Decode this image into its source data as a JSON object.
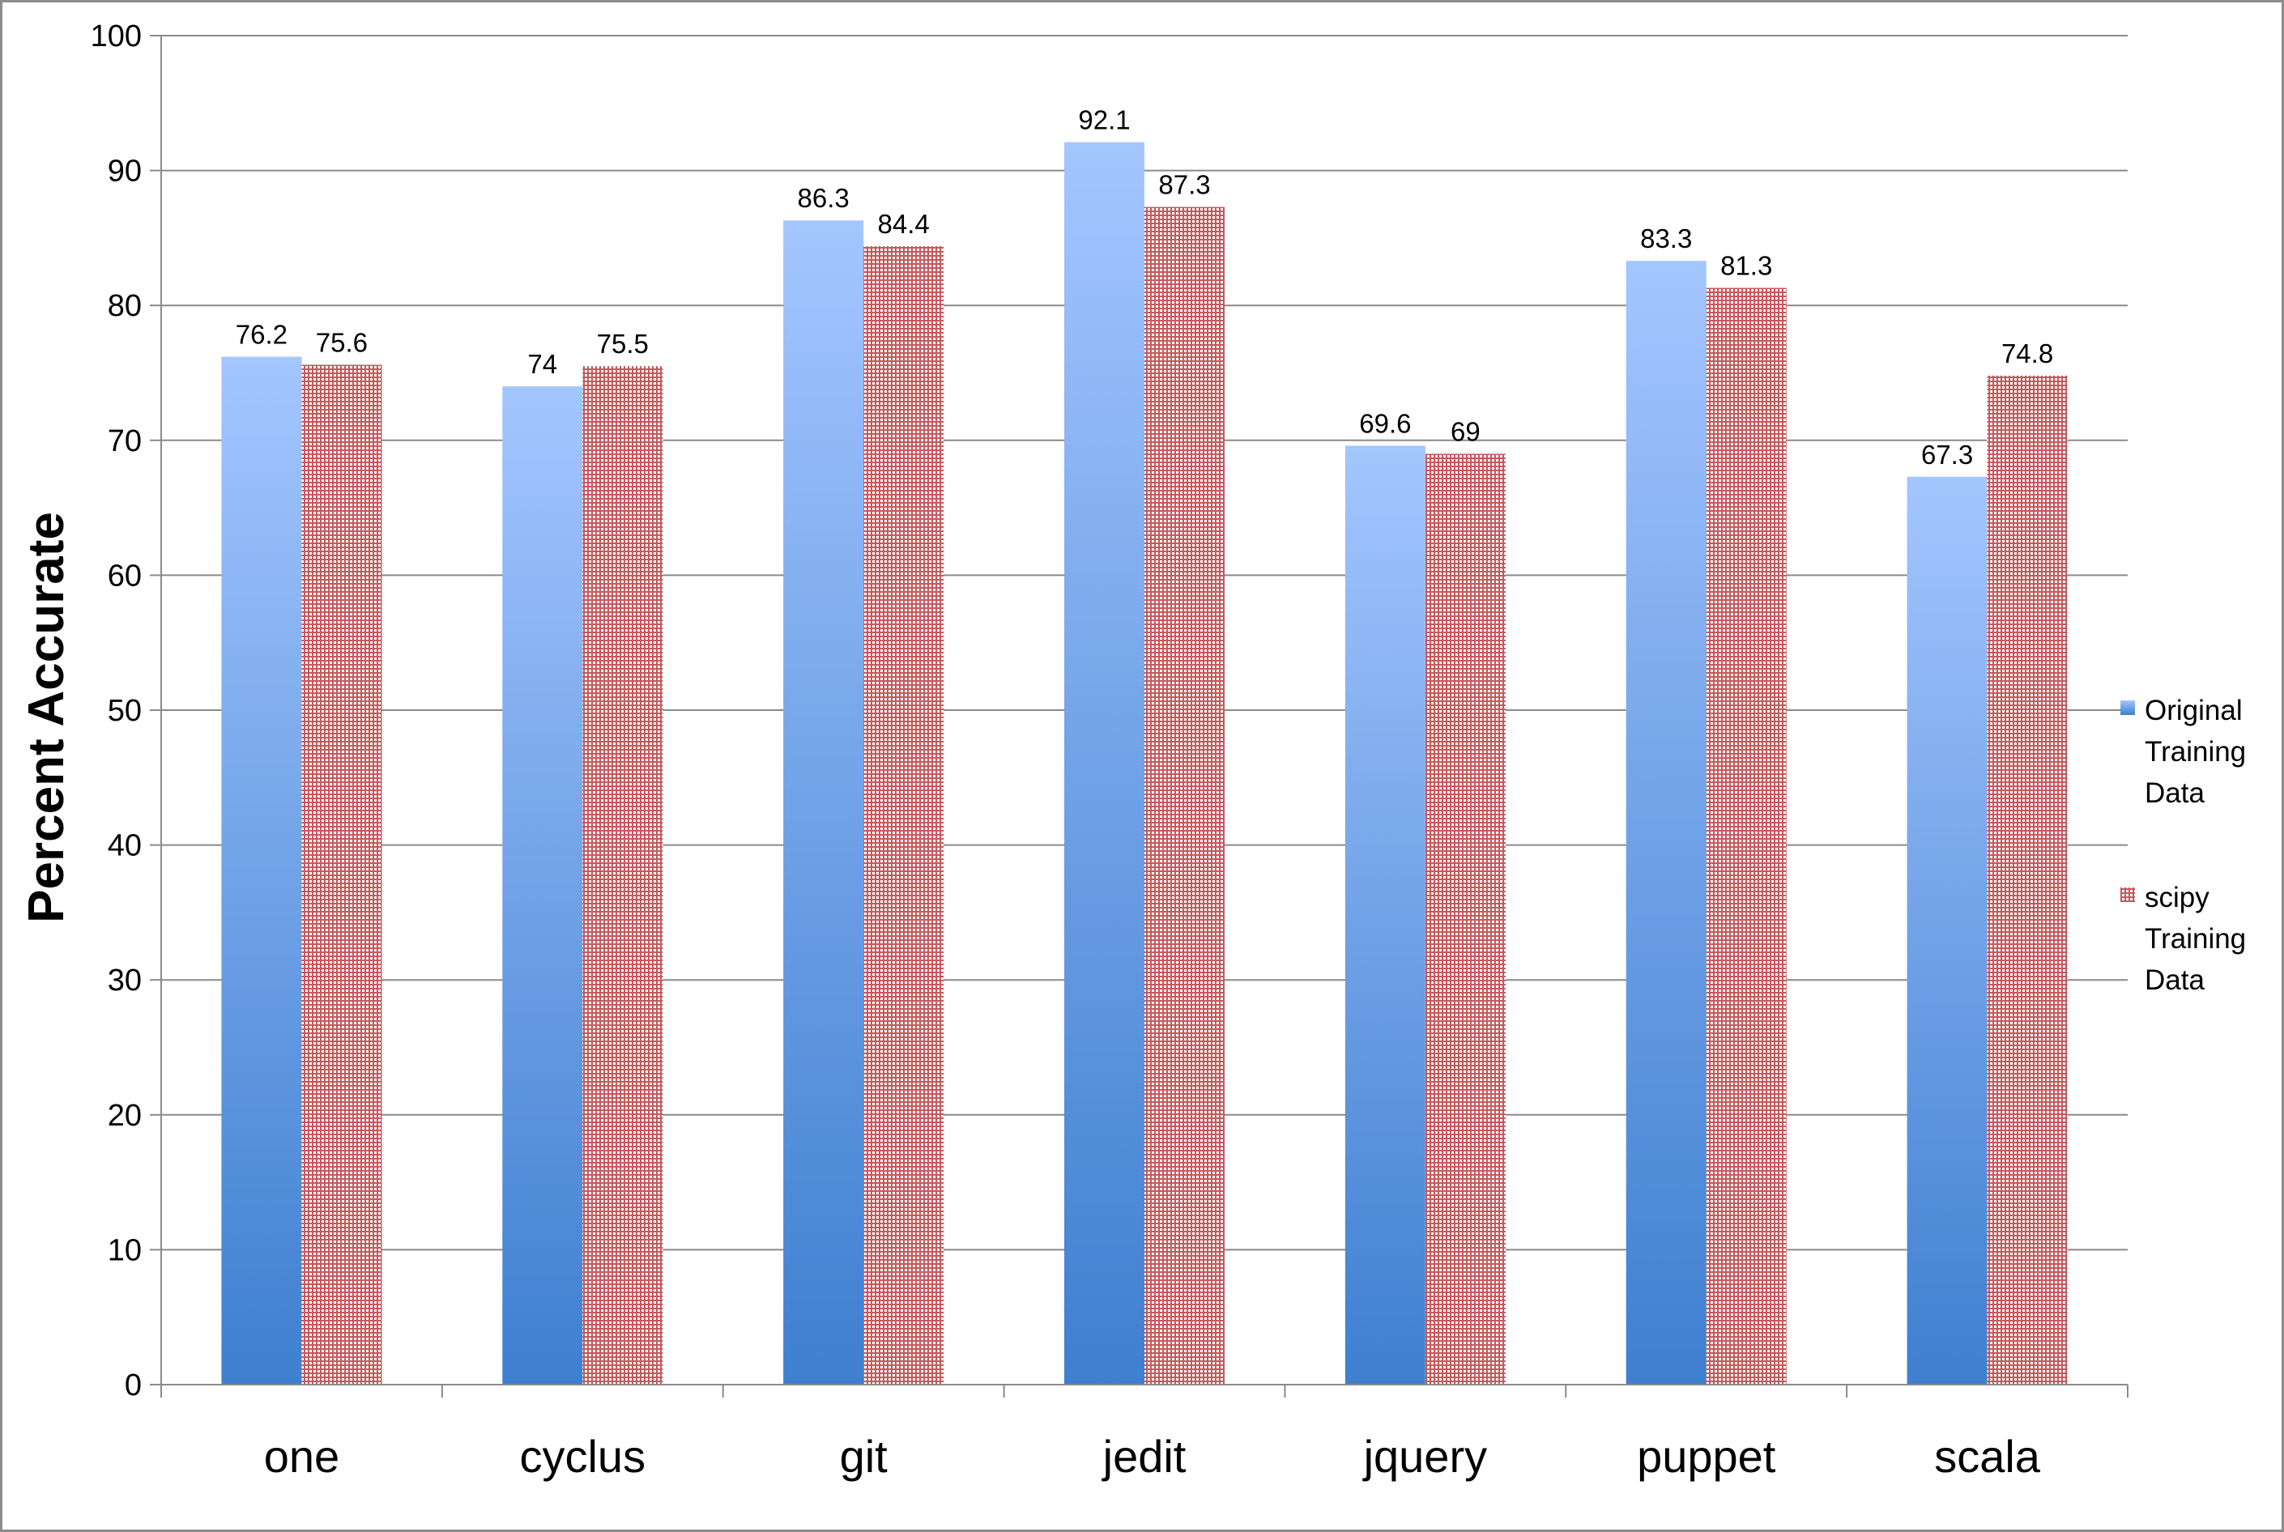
{
  "chart_data": {
    "type": "bar",
    "title": "",
    "xlabel": "",
    "ylabel": "Percent Accurate",
    "ylim": [
      0,
      100
    ],
    "ytick_step": 10,
    "grid": true,
    "legend_position": "right",
    "categories": [
      "one",
      "cyclus",
      "git",
      "jedit",
      "jquery",
      "puppet",
      "scala"
    ],
    "series": [
      {
        "name": "Original Training Data",
        "values": [
          76.2,
          74,
          86.3,
          92.1,
          69.6,
          83.3,
          67.3
        ],
        "color_top": "#a4c6ff",
        "color_bottom": "#3e7fd0",
        "fill": "gradient"
      },
      {
        "name": "scipy Training Data",
        "values": [
          75.6,
          75.5,
          84.4,
          87.3,
          69,
          81.3,
          74.8
        ],
        "color": "#c7585b",
        "fill": "crosshatch"
      }
    ]
  }
}
